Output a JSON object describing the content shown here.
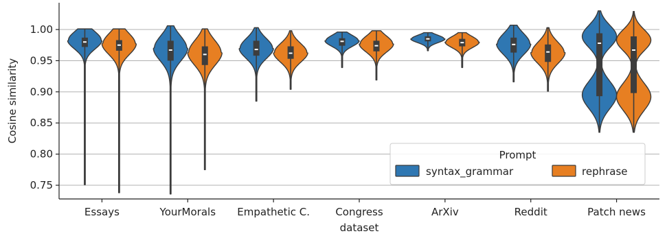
{
  "chart_data": {
    "type": "violin",
    "xlabel": "dataset",
    "ylabel": "Cosine similarity",
    "ylim": [
      0.728,
      1.043
    ],
    "yticks": [
      0.75,
      0.8,
      0.85,
      0.9,
      0.95,
      1.0
    ],
    "ytick_labels": [
      "0.75",
      "0.80",
      "0.85",
      "0.90",
      "0.95",
      "1.00"
    ],
    "grid": "horizontal",
    "categories": [
      "Essays",
      "YourMorals",
      "Empathetic C.",
      "Congress",
      "ArXiv",
      "Reddit",
      "Patch news"
    ],
    "legend": {
      "title": "Prompt",
      "placement": "lower-right"
    },
    "series": [
      {
        "name": "syntax_grammar",
        "color": "#2f77b2",
        "distributions": [
          {
            "min": 0.751,
            "max": 1.001,
            "q1": 0.972,
            "median": 0.98,
            "q3": 0.987,
            "modes": [
              [
                0.983,
                0.014
              ]
            ],
            "tail": 0.022
          },
          {
            "min": 0.736,
            "max": 1.006,
            "q1": 0.95,
            "median": 0.967,
            "q3": 0.982,
            "modes": [
              [
                0.97,
                0.02
              ]
            ],
            "tail": 0.06
          },
          {
            "min": 0.885,
            "max": 1.003,
            "q1": 0.958,
            "median": 0.968,
            "q3": 0.982,
            "modes": [
              [
                0.97,
                0.016
              ]
            ],
            "tail": 0.032
          },
          {
            "min": 0.939,
            "max": 0.996,
            "q1": 0.974,
            "median": 0.981,
            "q3": 0.986,
            "modes": [
              [
                0.982,
                0.009
              ]
            ],
            "tail": 0.012
          },
          {
            "min": 0.966,
            "max": 0.995,
            "q1": 0.981,
            "median": 0.985,
            "q3": 0.989,
            "modes": [
              [
                0.985,
                0.006
              ]
            ],
            "tail": 0.008
          },
          {
            "min": 0.916,
            "max": 1.007,
            "q1": 0.963,
            "median": 0.976,
            "q3": 0.987,
            "modes": [
              [
                0.977,
                0.017
              ]
            ],
            "tail": 0.022
          },
          {
            "min": 0.835,
            "max": 1.03,
            "q1": 0.893,
            "median": 0.978,
            "q3": 0.994,
            "modes": [
              [
                0.989,
                0.018
              ],
              [
                0.895,
                0.022
              ]
            ],
            "tail": 0.0
          }
        ]
      },
      {
        "name": "rephrase",
        "color": "#e77f22",
        "distributions": [
          {
            "min": 0.738,
            "max": 1.001,
            "q1": 0.966,
            "median": 0.975,
            "q3": 0.983,
            "modes": [
              [
                0.977,
                0.017
              ]
            ],
            "tail": 0.026
          },
          {
            "min": 0.775,
            "max": 1.001,
            "q1": 0.943,
            "median": 0.96,
            "q3": 0.973,
            "modes": [
              [
                0.963,
                0.02
              ]
            ],
            "tail": 0.042
          },
          {
            "min": 0.904,
            "max": 0.998,
            "q1": 0.953,
            "median": 0.962,
            "q3": 0.973,
            "modes": [
              [
                0.963,
                0.015
              ]
            ],
            "tail": 0.03
          },
          {
            "min": 0.919,
            "max": 0.998,
            "q1": 0.965,
            "median": 0.974,
            "q3": 0.982,
            "modes": [
              [
                0.977,
                0.013
              ]
            ],
            "tail": 0.022
          },
          {
            "min": 0.939,
            "max": 0.995,
            "q1": 0.973,
            "median": 0.979,
            "q3": 0.985,
            "modes": [
              [
                0.98,
                0.009
              ]
            ],
            "tail": 0.014
          },
          {
            "min": 0.901,
            "max": 1.003,
            "q1": 0.948,
            "median": 0.964,
            "q3": 0.976,
            "modes": [
              [
                0.963,
                0.017
              ]
            ],
            "tail": 0.03
          },
          {
            "min": 0.835,
            "max": 1.029,
            "q1": 0.898,
            "median": 0.967,
            "q3": 0.989,
            "modes": [
              [
                0.983,
                0.017
              ],
              [
                0.892,
                0.022
              ]
            ],
            "tail": 0.0
          }
        ]
      }
    ]
  }
}
